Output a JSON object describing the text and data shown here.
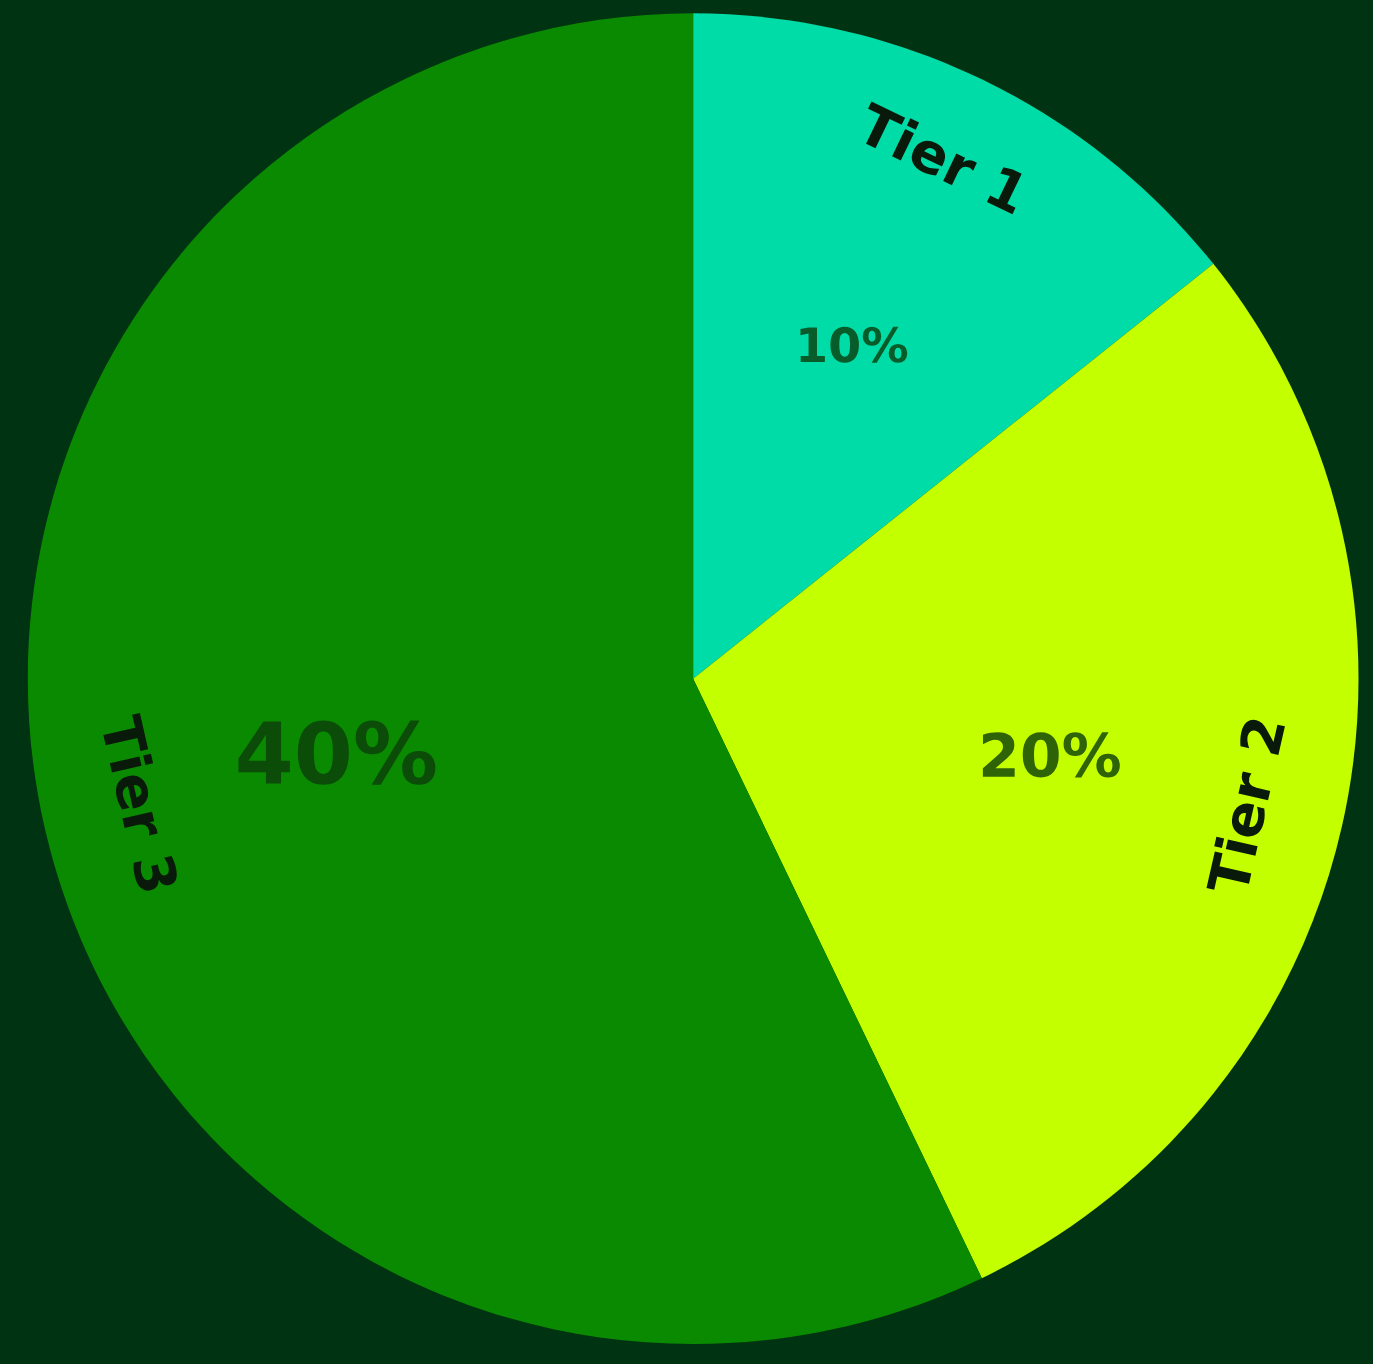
{
  "chart_data": {
    "type": "pie",
    "categories": [
      "Tier 1",
      "Tier 2",
      "Tier 3"
    ],
    "values": [
      10,
      20,
      40
    ],
    "colors": [
      "#00dca8",
      "#c4ff00",
      "#0a8a00"
    ],
    "value_labels": [
      "10%",
      "20%",
      "40%"
    ]
  }
}
